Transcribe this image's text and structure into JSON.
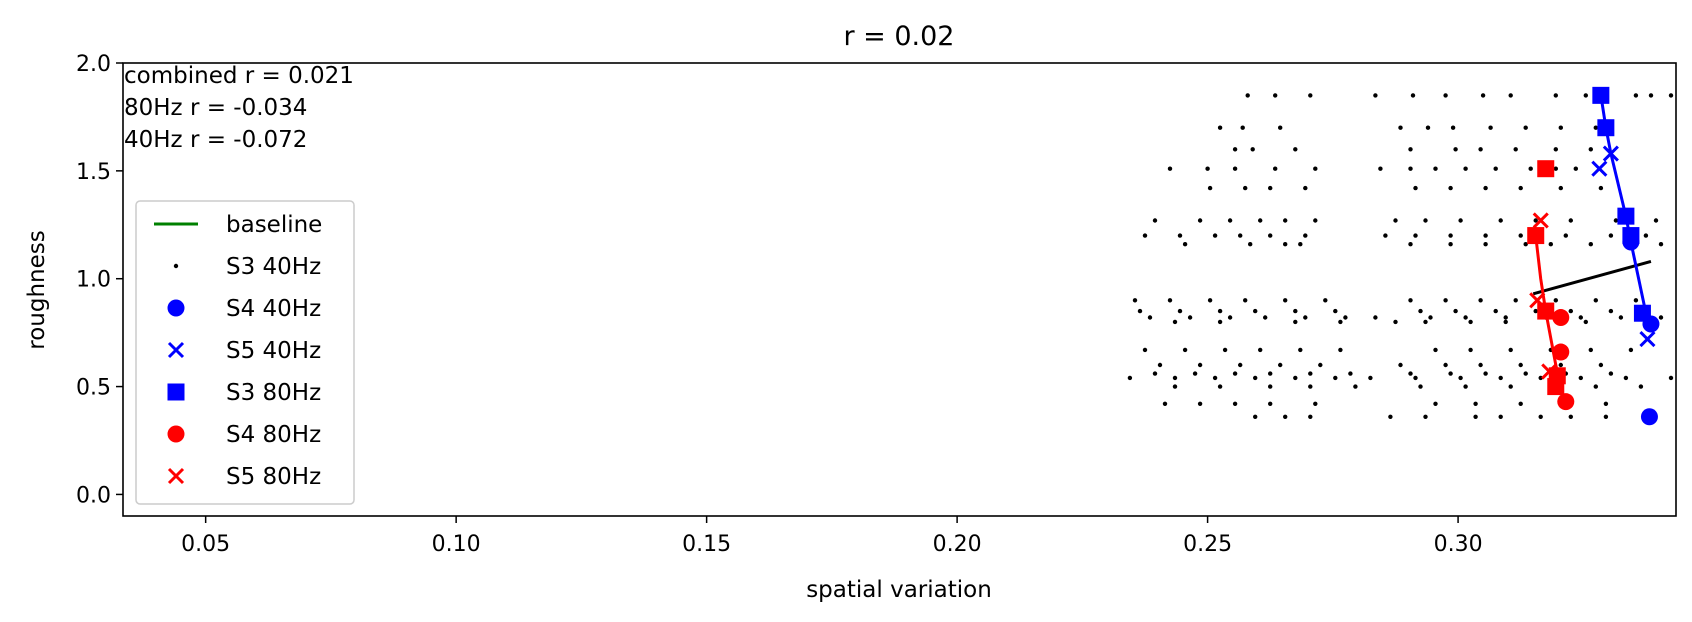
{
  "chart_data": {
    "type": "scatter",
    "title": "r = 0.02",
    "xlabel": "spatial variation",
    "ylabel": "roughness",
    "xlim": [
      0.0335,
      0.3435
    ],
    "ylim": [
      -0.1,
      2.0
    ],
    "xticks": [
      0.05,
      0.1,
      0.15,
      0.2,
      0.25,
      0.3
    ],
    "xtick_labels": [
      "0.05",
      "0.10",
      "0.15",
      "0.20",
      "0.25",
      "0.30"
    ],
    "yticks": [
      0.0,
      0.5,
      1.0,
      1.5,
      2.0
    ],
    "ytick_labels": [
      "0.0",
      "0.5",
      "1.0",
      "1.5",
      "2.0"
    ],
    "grid": false,
    "legend_position": "left",
    "annotations": [
      "combined r = 0.021",
      "80Hz r = -0.034",
      "40Hz r = -0.072"
    ],
    "legend": [
      {
        "label": "baseline",
        "marker": "line",
        "color": "#008000"
      },
      {
        "label": "S3 40Hz",
        "marker": "dot",
        "color": "#000000"
      },
      {
        "label": "S4 40Hz",
        "marker": "circle",
        "color": "#0000ff"
      },
      {
        "label": "S5 40Hz",
        "marker": "x",
        "color": "#0000ff"
      },
      {
        "label": "S3 80Hz",
        "marker": "square",
        "color": "#0000ff"
      },
      {
        "label": "S4 80Hz",
        "marker": "circle",
        "color": "#ff0000"
      },
      {
        "label": "S5 80Hz",
        "marker": "x",
        "color": "#ff0000"
      }
    ],
    "baseline_points": [
      [
        0.258,
        1.85
      ],
      [
        0.2635,
        1.85
      ],
      [
        0.2705,
        1.85
      ],
      [
        0.2835,
        1.85
      ],
      [
        0.291,
        1.85
      ],
      [
        0.2975,
        1.85
      ],
      [
        0.305,
        1.85
      ],
      [
        0.3105,
        1.85
      ],
      [
        0.3195,
        1.85
      ],
      [
        0.3255,
        1.85
      ],
      [
        0.3355,
        1.85
      ],
      [
        0.3385,
        1.85
      ],
      [
        0.3425,
        1.85
      ],
      [
        0.2525,
        1.7
      ],
      [
        0.257,
        1.7
      ],
      [
        0.2645,
        1.7
      ],
      [
        0.2885,
        1.7
      ],
      [
        0.294,
        1.7
      ],
      [
        0.299,
        1.7
      ],
      [
        0.3065,
        1.7
      ],
      [
        0.3135,
        1.7
      ],
      [
        0.3205,
        1.7
      ],
      [
        0.3275,
        1.7
      ],
      [
        0.2555,
        1.6
      ],
      [
        0.259,
        1.6
      ],
      [
        0.2675,
        1.6
      ],
      [
        0.2905,
        1.6
      ],
      [
        0.2995,
        1.6
      ],
      [
        0.3045,
        1.6
      ],
      [
        0.3115,
        1.6
      ],
      [
        0.3195,
        1.6
      ],
      [
        0.3265,
        1.6
      ],
      [
        0.2425,
        1.51
      ],
      [
        0.25,
        1.51
      ],
      [
        0.2555,
        1.51
      ],
      [
        0.2635,
        1.51
      ],
      [
        0.2715,
        1.51
      ],
      [
        0.2845,
        1.51
      ],
      [
        0.2905,
        1.51
      ],
      [
        0.2955,
        1.51
      ],
      [
        0.3015,
        1.51
      ],
      [
        0.3075,
        1.51
      ],
      [
        0.3145,
        1.51
      ],
      [
        0.3195,
        1.51
      ],
      [
        0.3235,
        1.51
      ],
      [
        0.2505,
        1.42
      ],
      [
        0.2575,
        1.42
      ],
      [
        0.2625,
        1.42
      ],
      [
        0.2695,
        1.42
      ],
      [
        0.2915,
        1.42
      ],
      [
        0.2985,
        1.42
      ],
      [
        0.3055,
        1.42
      ],
      [
        0.3125,
        1.42
      ],
      [
        0.3205,
        1.42
      ],
      [
        0.3285,
        1.42
      ],
      [
        0.2395,
        1.27
      ],
      [
        0.2485,
        1.27
      ],
      [
        0.2545,
        1.27
      ],
      [
        0.2605,
        1.27
      ],
      [
        0.2655,
        1.27
      ],
      [
        0.2715,
        1.27
      ],
      [
        0.2875,
        1.27
      ],
      [
        0.2935,
        1.27
      ],
      [
        0.3005,
        1.27
      ],
      [
        0.3085,
        1.27
      ],
      [
        0.3155,
        1.27
      ],
      [
        0.3225,
        1.27
      ],
      [
        0.3315,
        1.27
      ],
      [
        0.3395,
        1.27
      ],
      [
        0.2375,
        1.2
      ],
      [
        0.2445,
        1.2
      ],
      [
        0.2515,
        1.2
      ],
      [
        0.2565,
        1.2
      ],
      [
        0.2625,
        1.2
      ],
      [
        0.2695,
        1.2
      ],
      [
        0.2855,
        1.2
      ],
      [
        0.2915,
        1.2
      ],
      [
        0.2985,
        1.2
      ],
      [
        0.3055,
        1.2
      ],
      [
        0.3125,
        1.2
      ],
      [
        0.3215,
        1.2
      ],
      [
        0.3305,
        1.2
      ],
      [
        0.3375,
        1.2
      ],
      [
        0.2455,
        1.16
      ],
      [
        0.2585,
        1.16
      ],
      [
        0.2655,
        1.16
      ],
      [
        0.2685,
        1.16
      ],
      [
        0.2905,
        1.16
      ],
      [
        0.2985,
        1.16
      ],
      [
        0.3055,
        1.16
      ],
      [
        0.3135,
        1.16
      ],
      [
        0.3185,
        1.16
      ],
      [
        0.3265,
        1.16
      ],
      [
        0.3405,
        1.16
      ],
      [
        0.2355,
        0.9
      ],
      [
        0.2425,
        0.9
      ],
      [
        0.2505,
        0.9
      ],
      [
        0.2575,
        0.9
      ],
      [
        0.2655,
        0.9
      ],
      [
        0.2735,
        0.9
      ],
      [
        0.2905,
        0.9
      ],
      [
        0.2975,
        0.9
      ],
      [
        0.3045,
        0.9
      ],
      [
        0.3115,
        0.9
      ],
      [
        0.3195,
        0.9
      ],
      [
        0.3275,
        0.9
      ],
      [
        0.3355,
        0.9
      ],
      [
        0.2365,
        0.85
      ],
      [
        0.2445,
        0.85
      ],
      [
        0.2525,
        0.85
      ],
      [
        0.2595,
        0.85
      ],
      [
        0.2675,
        0.85
      ],
      [
        0.2755,
        0.85
      ],
      [
        0.2925,
        0.85
      ],
      [
        0.2995,
        0.85
      ],
      [
        0.3075,
        0.85
      ],
      [
        0.3155,
        0.85
      ],
      [
        0.3225,
        0.85
      ],
      [
        0.3305,
        0.85
      ],
      [
        0.2385,
        0.82
      ],
      [
        0.2465,
        0.82
      ],
      [
        0.2545,
        0.82
      ],
      [
        0.2615,
        0.82
      ],
      [
        0.2695,
        0.82
      ],
      [
        0.2775,
        0.82
      ],
      [
        0.2835,
        0.82
      ],
      [
        0.2945,
        0.82
      ],
      [
        0.3015,
        0.82
      ],
      [
        0.3095,
        0.82
      ],
      [
        0.3175,
        0.82
      ],
      [
        0.3245,
        0.82
      ],
      [
        0.3325,
        0.82
      ],
      [
        0.3405,
        0.82
      ],
      [
        0.2435,
        0.8
      ],
      [
        0.2525,
        0.8
      ],
      [
        0.2675,
        0.8
      ],
      [
        0.2765,
        0.8
      ],
      [
        0.2875,
        0.8
      ],
      [
        0.2935,
        0.8
      ],
      [
        0.3025,
        0.8
      ],
      [
        0.3095,
        0.8
      ],
      [
        0.3255,
        0.8
      ],
      [
        0.2375,
        0.67
      ],
      [
        0.2455,
        0.67
      ],
      [
        0.2535,
        0.67
      ],
      [
        0.2605,
        0.67
      ],
      [
        0.2685,
        0.67
      ],
      [
        0.2765,
        0.67
      ],
      [
        0.2955,
        0.67
      ],
      [
        0.3025,
        0.67
      ],
      [
        0.3105,
        0.67
      ],
      [
        0.3185,
        0.67
      ],
      [
        0.3265,
        0.67
      ],
      [
        0.3345,
        0.67
      ],
      [
        0.2405,
        0.6
      ],
      [
        0.2485,
        0.6
      ],
      [
        0.2565,
        0.6
      ],
      [
        0.2645,
        0.6
      ],
      [
        0.2725,
        0.6
      ],
      [
        0.2885,
        0.6
      ],
      [
        0.2975,
        0.6
      ],
      [
        0.3045,
        0.6
      ],
      [
        0.3125,
        0.6
      ],
      [
        0.3205,
        0.6
      ],
      [
        0.3285,
        0.6
      ],
      [
        0.2395,
        0.56
      ],
      [
        0.2475,
        0.56
      ],
      [
        0.2555,
        0.56
      ],
      [
        0.2625,
        0.56
      ],
      [
        0.2705,
        0.56
      ],
      [
        0.2785,
        0.56
      ],
      [
        0.2905,
        0.56
      ],
      [
        0.2985,
        0.56
      ],
      [
        0.3055,
        0.56
      ],
      [
        0.3135,
        0.56
      ],
      [
        0.3215,
        0.56
      ],
      [
        0.3305,
        0.56
      ],
      [
        0.2345,
        0.54
      ],
      [
        0.2435,
        0.54
      ],
      [
        0.2515,
        0.54
      ],
      [
        0.2595,
        0.54
      ],
      [
        0.2675,
        0.54
      ],
      [
        0.2755,
        0.54
      ],
      [
        0.2825,
        0.54
      ],
      [
        0.2915,
        0.54
      ],
      [
        0.3005,
        0.54
      ],
      [
        0.3085,
        0.54
      ],
      [
        0.3165,
        0.54
      ],
      [
        0.3245,
        0.54
      ],
      [
        0.3335,
        0.54
      ],
      [
        0.3425,
        0.54
      ],
      [
        0.2435,
        0.5
      ],
      [
        0.2525,
        0.5
      ],
      [
        0.2625,
        0.5
      ],
      [
        0.2705,
        0.5
      ],
      [
        0.2795,
        0.5
      ],
      [
        0.2925,
        0.5
      ],
      [
        0.3015,
        0.5
      ],
      [
        0.3105,
        0.5
      ],
      [
        0.3195,
        0.5
      ],
      [
        0.3275,
        0.5
      ],
      [
        0.3365,
        0.5
      ],
      [
        0.2415,
        0.42
      ],
      [
        0.2485,
        0.42
      ],
      [
        0.2555,
        0.42
      ],
      [
        0.2625,
        0.42
      ],
      [
        0.2715,
        0.42
      ],
      [
        0.2955,
        0.42
      ],
      [
        0.3035,
        0.42
      ],
      [
        0.3125,
        0.42
      ],
      [
        0.3205,
        0.42
      ],
      [
        0.3295,
        0.42
      ],
      [
        0.2595,
        0.36
      ],
      [
        0.2655,
        0.36
      ],
      [
        0.2705,
        0.36
      ],
      [
        0.2865,
        0.36
      ],
      [
        0.2935,
        0.36
      ],
      [
        0.3035,
        0.36
      ],
      [
        0.3085,
        0.36
      ],
      [
        0.3165,
        0.36
      ],
      [
        0.3225,
        0.36
      ],
      [
        0.3295,
        0.36
      ]
    ],
    "regression_line": {
      "color": "#000000",
      "points": [
        [
          0.315,
          0.93
        ],
        [
          0.3385,
          1.08
        ]
      ]
    },
    "blue_series": {
      "color": "#0000ff",
      "line": [
        [
          0.3285,
          1.85
        ],
        [
          0.3295,
          1.7
        ],
        [
          0.3305,
          1.58
        ],
        [
          0.3335,
          1.29
        ],
        [
          0.3345,
          1.17
        ],
        [
          0.3375,
          0.84
        ],
        [
          0.3385,
          0.79
        ]
      ],
      "squares": [
        [
          0.3285,
          1.85
        ],
        [
          0.3295,
          1.7
        ],
        [
          0.3335,
          1.29
        ],
        [
          0.3345,
          1.2
        ],
        [
          0.3368,
          0.84
        ]
      ],
      "circles": [
        [
          0.3345,
          1.17
        ],
        [
          0.3385,
          0.79
        ],
        [
          0.3382,
          0.36
        ]
      ],
      "crosses": [
        [
          0.3282,
          1.51
        ],
        [
          0.3305,
          1.58
        ],
        [
          0.3378,
          0.72
        ]
      ]
    },
    "red_series": {
      "color": "#ff0000",
      "line": [
        [
          0.3155,
          1.2
        ],
        [
          0.3165,
          1.0
        ],
        [
          0.3175,
          0.85
        ],
        [
          0.3195,
          0.6
        ],
        [
          0.3205,
          0.5
        ]
      ],
      "squares": [
        [
          0.3175,
          1.51
        ],
        [
          0.3155,
          1.2
        ],
        [
          0.3175,
          0.85
        ],
        [
          0.3195,
          0.5
        ],
        [
          0.3198,
          0.55
        ]
      ],
      "circles": [
        [
          0.3205,
          0.82
        ],
        [
          0.3205,
          0.66
        ],
        [
          0.3215,
          0.43
        ]
      ],
      "crosses": [
        [
          0.3165,
          1.27
        ],
        [
          0.3158,
          0.9
        ],
        [
          0.3182,
          0.57
        ],
        [
          0.3195,
          0.55
        ]
      ]
    }
  }
}
